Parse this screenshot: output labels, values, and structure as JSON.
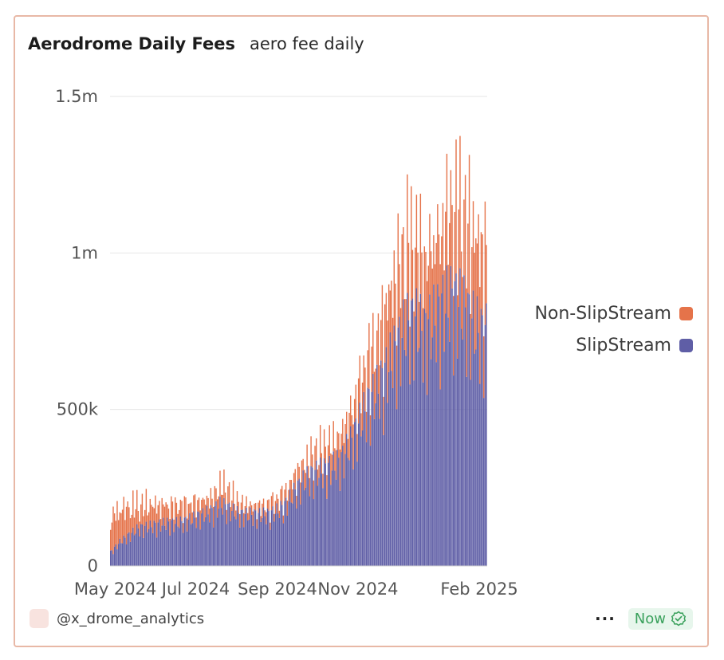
{
  "header": {
    "title": "Aerodrome Daily Fees",
    "subtitle": "aero fee daily"
  },
  "footer": {
    "author": "@x_drome_analytics",
    "menu_label": "···",
    "status_label": "Now",
    "status_icon": "check-badge-icon"
  },
  "colors": {
    "non_slipstream": "#e5734a",
    "slipstream": "#5f5ea6",
    "grid": "#e6e6e6",
    "status_green": "#3aa15c"
  },
  "chart_data": {
    "type": "bar",
    "stacked": true,
    "x_start": "2024-04-27",
    "x_end": "2025-02-06",
    "xticks": [
      {
        "label": "May 2024",
        "date": "2024-05-01"
      },
      {
        "label": "Jul 2024",
        "date": "2024-07-01"
      },
      {
        "label": "Sep 2024",
        "date": "2024-09-01"
      },
      {
        "label": "Nov 2024",
        "date": "2024-11-01"
      },
      {
        "label": "Feb 2025",
        "date": "2025-02-01"
      }
    ],
    "yticks": [
      {
        "label": "0",
        "value": 0
      },
      {
        "label": "500k",
        "value": 500000
      },
      {
        "label": "1m",
        "value": 1000000
      },
      {
        "label": "1.5m",
        "value": 1500000
      }
    ],
    "ylim": [
      0,
      1500000
    ],
    "grid": true,
    "legend_position": "right",
    "series": [
      {
        "name": "Non-SlipStream",
        "color": "#e5734a",
        "weekly_values": [
          120000,
          110000,
          95000,
          80000,
          75000,
          70000,
          65000,
          60000,
          55000,
          55000,
          50000,
          50000,
          70000,
          55000,
          40000,
          35000,
          30000,
          35000,
          40000,
          45000,
          55000,
          60000,
          70000,
          75000,
          85000,
          95000,
          110000,
          125000,
          150000,
          185000,
          230000,
          260000,
          280000,
          270000,
          260000,
          280000,
          300000,
          310000,
          330000,
          320000,
          300000
        ]
      },
      {
        "name": "SlipStream",
        "color": "#5f5ea6",
        "weekly_values": [
          40000,
          70000,
          90000,
          110000,
          115000,
          120000,
          125000,
          125000,
          130000,
          140000,
          150000,
          160000,
          180000,
          165000,
          150000,
          150000,
          150000,
          150000,
          160000,
          180000,
          220000,
          250000,
          270000,
          280000,
          290000,
          310000,
          360000,
          420000,
          480000,
          520000,
          580000,
          640000,
          700000,
          720000,
          680000,
          720000,
          760000,
          780000,
          760000,
          720000,
          680000
        ]
      }
    ]
  }
}
